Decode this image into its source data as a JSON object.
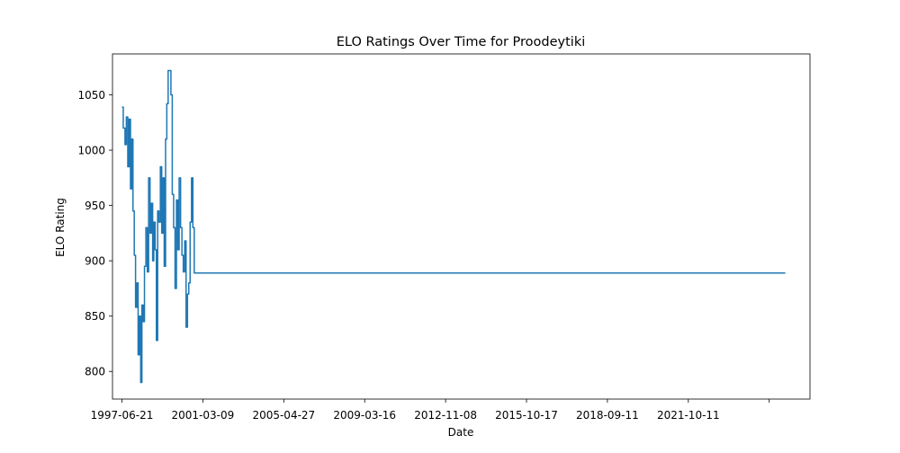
{
  "chart_data": {
    "type": "line",
    "title": "ELO Ratings Over Time for Proodeytiki",
    "xlabel": "Date",
    "ylabel": "ELO Rating",
    "x_tick_labels": [
      "1997-06-21",
      "2001-03-09",
      "2005-04-27",
      "2009-03-16",
      "2012-11-08",
      "2015-10-17",
      "2018-09-11",
      "2021-10-11",
      ""
    ],
    "y_ticks": [
      800,
      850,
      900,
      950,
      1000,
      1050
    ],
    "ylim": [
      775,
      1087
    ],
    "xlim": [
      "1997-02-01",
      "2025-05-01"
    ],
    "grid": false,
    "legend": "none",
    "series": [
      {
        "color": "#1f77b4",
        "x": [
          "1997-06-21",
          "1997-07-10",
          "1997-08-05",
          "1997-08-25",
          "1997-09-15",
          "1997-10-05",
          "1997-10-25",
          "1997-11-12",
          "1997-12-01",
          "1997-12-20",
          "1998-01-08",
          "1998-01-28",
          "1998-02-15",
          "1998-03-05",
          "1998-03-25",
          "1998-04-12",
          "1998-05-02",
          "1998-05-20",
          "1998-06-10",
          "1998-07-01",
          "1998-07-20",
          "1998-08-10",
          "1998-08-30",
          "1998-09-18",
          "1998-10-05",
          "1998-10-25",
          "1998-11-12",
          "1998-12-01",
          "1998-12-20",
          "1999-01-10",
          "1999-01-30",
          "1999-02-18",
          "1999-03-08",
          "1999-03-28",
          "1999-04-15",
          "1999-05-05",
          "1999-05-25",
          "1999-06-15",
          "1999-07-05",
          "1999-07-25",
          "1999-08-15",
          "1999-09-05",
          "1999-09-25",
          "1999-10-15",
          "1999-11-05",
          "1999-11-25",
          "1999-12-15",
          "2000-01-05",
          "2000-01-25",
          "2000-02-15",
          "2000-03-05",
          "2000-03-25",
          "2000-04-15",
          "2000-05-05",
          "2000-05-25",
          "2000-06-15",
          "2000-07-05",
          "2000-07-25",
          "2000-08-15",
          "2000-09-05",
          "2000-09-25",
          "2000-10-15",
          "2000-11-05",
          "2000-11-25",
          "2000-12-15",
          "2001-01-05",
          "2001-01-20",
          "2024-05-01"
        ],
        "y": [
          1039,
          1020,
          1005,
          1030,
          985,
          1028,
          965,
          1010,
          945,
          905,
          858,
          880,
          815,
          850,
          790,
          860,
          845,
          895,
          930,
          890,
          975,
          925,
          952,
          900,
          935,
          910,
          828,
          945,
          935,
          985,
          925,
          975,
          895,
          1010,
          1042,
          1072,
          1072,
          1050,
          960,
          930,
          875,
          955,
          910,
          975,
          930,
          905,
          890,
          918,
          840,
          870,
          880,
          935,
          975,
          930,
          889,
          889,
          889,
          889,
          889,
          889,
          889,
          889,
          889,
          889,
          889,
          889,
          889,
          889
        ]
      }
    ]
  }
}
